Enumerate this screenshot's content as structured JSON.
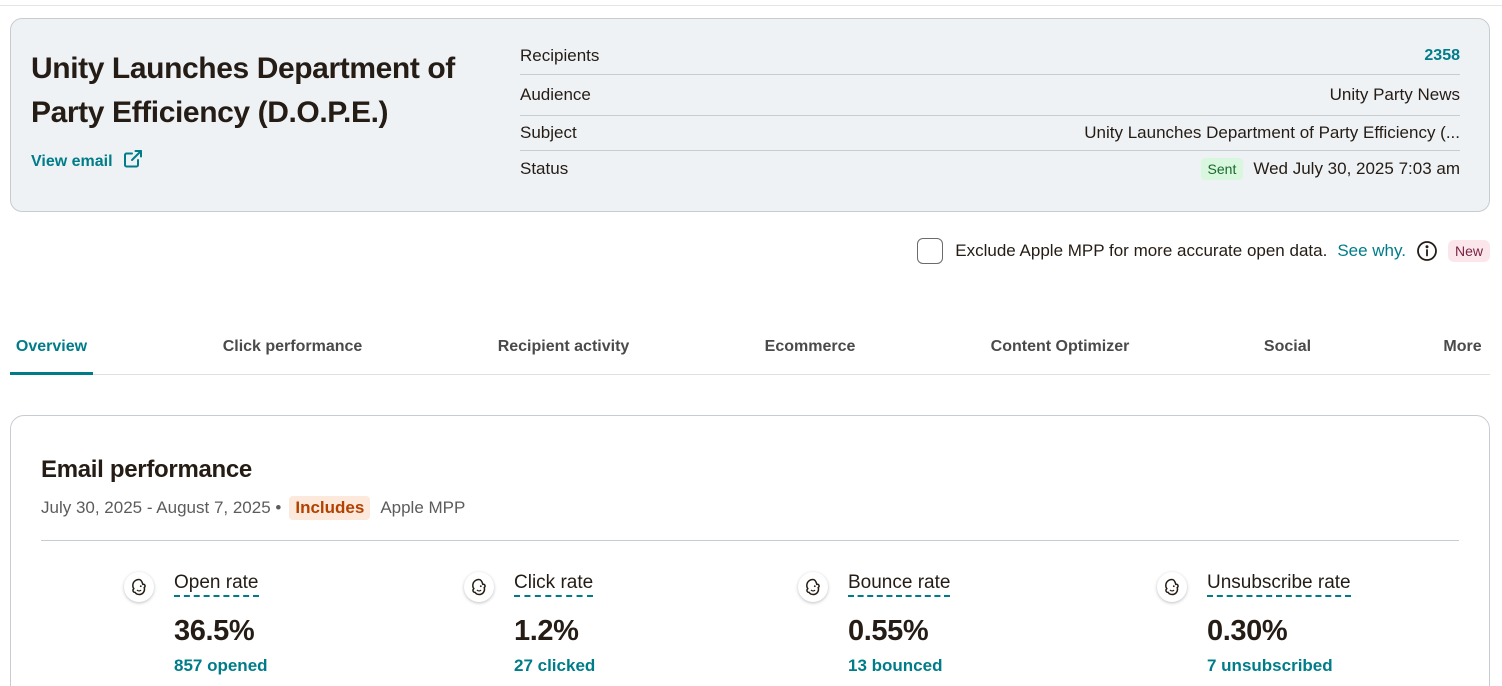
{
  "campaign": {
    "title": "Unity Launches Department of Party Efficiency (D.O.P.E.)",
    "view_email_label": "View email",
    "details": {
      "recipients_label": "Recipients",
      "recipients_value": "2358",
      "audience_label": "Audience",
      "audience_value": "Unity Party News",
      "subject_label": "Subject",
      "subject_value": "Unity Launches Department of Party Efficiency (...",
      "status_label": "Status",
      "status_badge": "Sent",
      "status_date": "Wed July 30, 2025 7:03 am"
    }
  },
  "mpp": {
    "checked": false,
    "text": "Exclude Apple MPP for more accurate open data.",
    "link": "See why.",
    "badge": "New"
  },
  "tabs": [
    {
      "label": "Overview",
      "active": true
    },
    {
      "label": "Click performance"
    },
    {
      "label": "Recipient activity"
    },
    {
      "label": "Ecommerce"
    },
    {
      "label": "Content Optimizer"
    },
    {
      "label": "Social"
    },
    {
      "label": "More"
    }
  ],
  "performance": {
    "title": "Email performance",
    "date_range": "July 30, 2025 - August 7, 2025 •",
    "includes_badge": "Includes",
    "mpp_label": "Apple MPP",
    "stats": [
      {
        "label": "Open rate",
        "value": "36.5%",
        "sub": "857 opened"
      },
      {
        "label": "Click rate",
        "value": "1.2%",
        "sub": "27 clicked"
      },
      {
        "label": "Bounce rate",
        "value": "0.55%",
        "sub": "13 bounced"
      },
      {
        "label": "Unsubscribe rate",
        "value": "0.30%",
        "sub": "7 unsubscribed"
      }
    ]
  },
  "colors": {
    "accent": "#007c89",
    "card_bg": "#eff2f5",
    "sent_badge_bg": "#d9f6de",
    "includes_badge_bg": "#fde8dc",
    "new_badge_bg": "#fbe6ec"
  }
}
